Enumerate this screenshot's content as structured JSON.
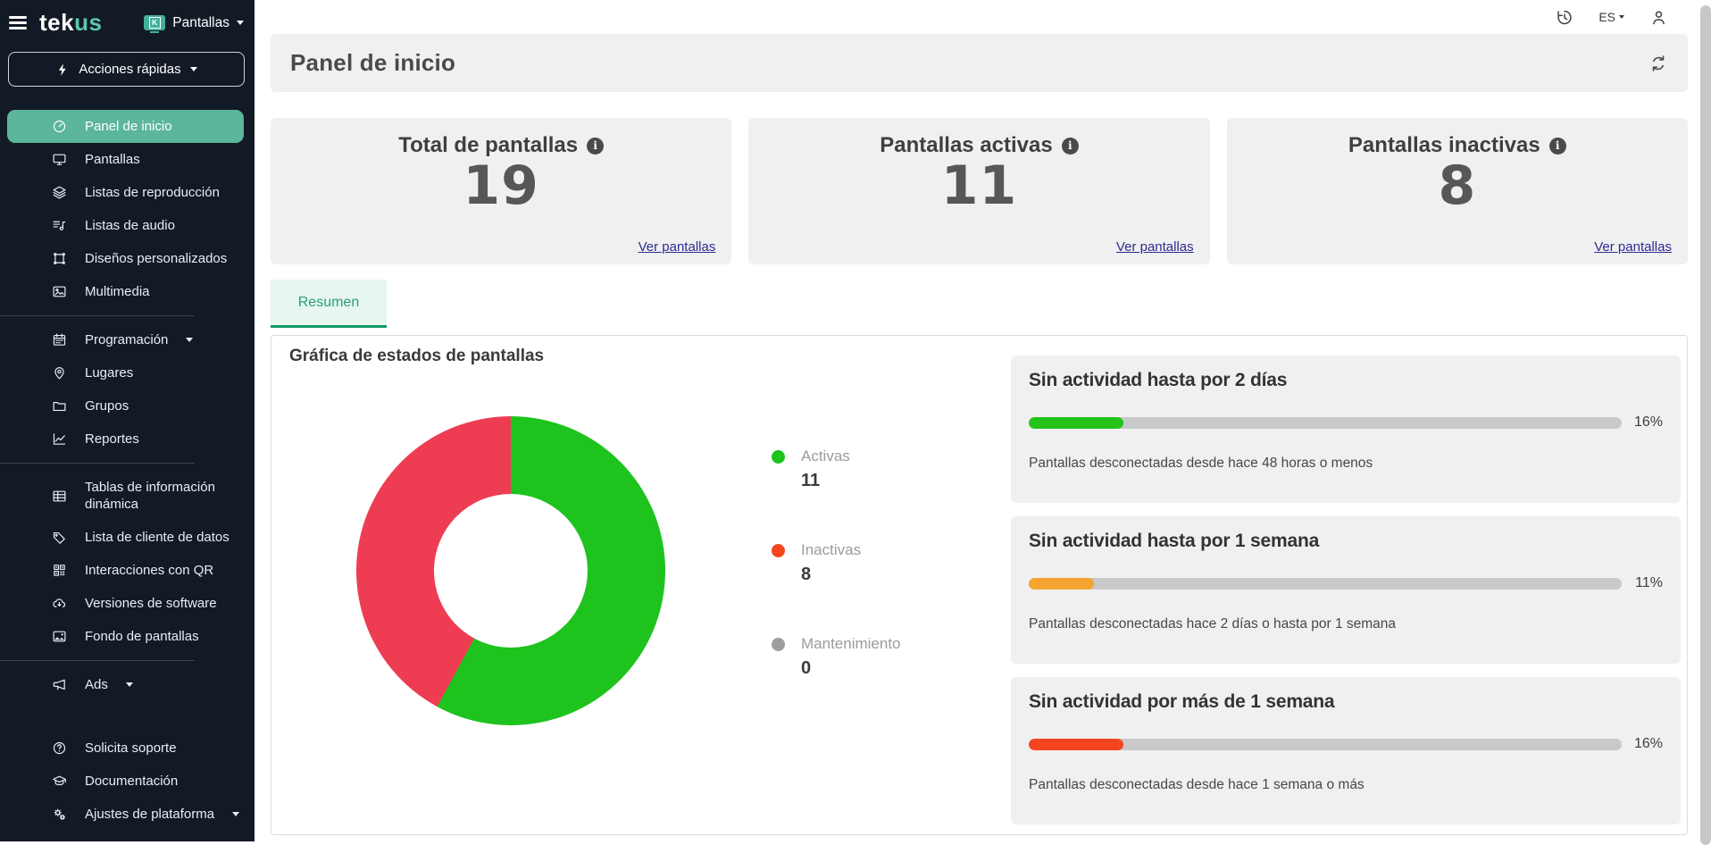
{
  "brand": {
    "logo_tek": "tek",
    "logo_us": "us",
    "context_label": "Pantallas",
    "context_monitor_letter": "K"
  },
  "topbar": {
    "language": "ES"
  },
  "sidebar": {
    "quick_actions_label": "Acciones rápidas",
    "items": [
      {
        "label": "Panel de inicio",
        "icon": "dashboard",
        "active": true
      },
      {
        "label": "Pantallas",
        "icon": "monitor"
      },
      {
        "label": "Listas de reproducción",
        "icon": "layers"
      },
      {
        "label": "Listas de audio",
        "icon": "audio-list"
      },
      {
        "label": "Diseños personalizados",
        "icon": "design-frame"
      },
      {
        "label": "Multimedia",
        "icon": "image"
      },
      {
        "divider": true
      },
      {
        "label": "Programación",
        "icon": "calendar",
        "caret": true
      },
      {
        "label": "Lugares",
        "icon": "map-pin"
      },
      {
        "label": "Grupos",
        "icon": "folder"
      },
      {
        "label": "Reportes",
        "icon": "chart-line"
      },
      {
        "divider": true
      },
      {
        "label": "Tablas de información dinámica",
        "icon": "table"
      },
      {
        "label": "Lista de cliente de datos",
        "icon": "data-tag"
      },
      {
        "label": "Interacciones con QR",
        "icon": "qr-code"
      },
      {
        "label": "Versiones de software",
        "icon": "cloud-download"
      },
      {
        "label": "Fondo de pantallas",
        "icon": "wallpaper"
      },
      {
        "divider": true
      },
      {
        "label": "Ads",
        "icon": "megaphone",
        "caret": true
      }
    ],
    "footer_items": [
      {
        "label": "Solicita soporte",
        "icon": "help-circle"
      },
      {
        "label": "Documentación",
        "icon": "graduation-cap"
      },
      {
        "label": "Ajustes de plataforma",
        "icon": "gears",
        "caret": true
      }
    ]
  },
  "header": {
    "title": "Panel de inicio"
  },
  "stats": [
    {
      "title": "Total de pantallas",
      "value": "19",
      "link": "Ver pantallas"
    },
    {
      "title": "Pantallas activas",
      "value": "11",
      "link": "Ver pantallas"
    },
    {
      "title": "Pantallas inactivas",
      "value": "8",
      "link": "Ver pantallas"
    }
  ],
  "tabs": [
    {
      "label": "Resumen",
      "active": true
    }
  ],
  "chart_section": {
    "title": "Gráfica de estados de pantallas"
  },
  "chart_data": {
    "type": "pie",
    "title": "Gráfica de estados de pantallas",
    "labels": [
      "Activas",
      "Inactivas",
      "Mantenimiento"
    ],
    "values": [
      11,
      8,
      0
    ],
    "total": 19,
    "colors": [
      "#1ec31e",
      "#ee3d53",
      "#9e9e9e"
    ],
    "donut": true,
    "legend_position": "right"
  },
  "legend": [
    {
      "label": "Activas",
      "value": "11",
      "color": "#1ec31e"
    },
    {
      "label": "Inactivas",
      "value": "8",
      "color": "#f4461e"
    },
    {
      "label": "Mantenimiento",
      "value": "0",
      "color": "#9e9e9e"
    }
  ],
  "activity_cards": [
    {
      "title": "Sin actividad hasta por 2 días",
      "percent": 16,
      "percent_label": "16%",
      "description": "Pantallas desconectadas desde hace 48 horas o menos",
      "color": "#25c31a"
    },
    {
      "title": "Sin actividad hasta por 1 semana",
      "percent": 11,
      "percent_label": "11%",
      "description": "Pantallas desconectadas hace 2 días o hasta por 1 semana",
      "color": "#f3a52f"
    },
    {
      "title": "Sin actividad por más de 1 semana",
      "percent": 16,
      "percent_label": "16%",
      "description": "Pantallas desconectadas desde hace 1 semana o más",
      "color": "#f4461e"
    }
  ]
}
